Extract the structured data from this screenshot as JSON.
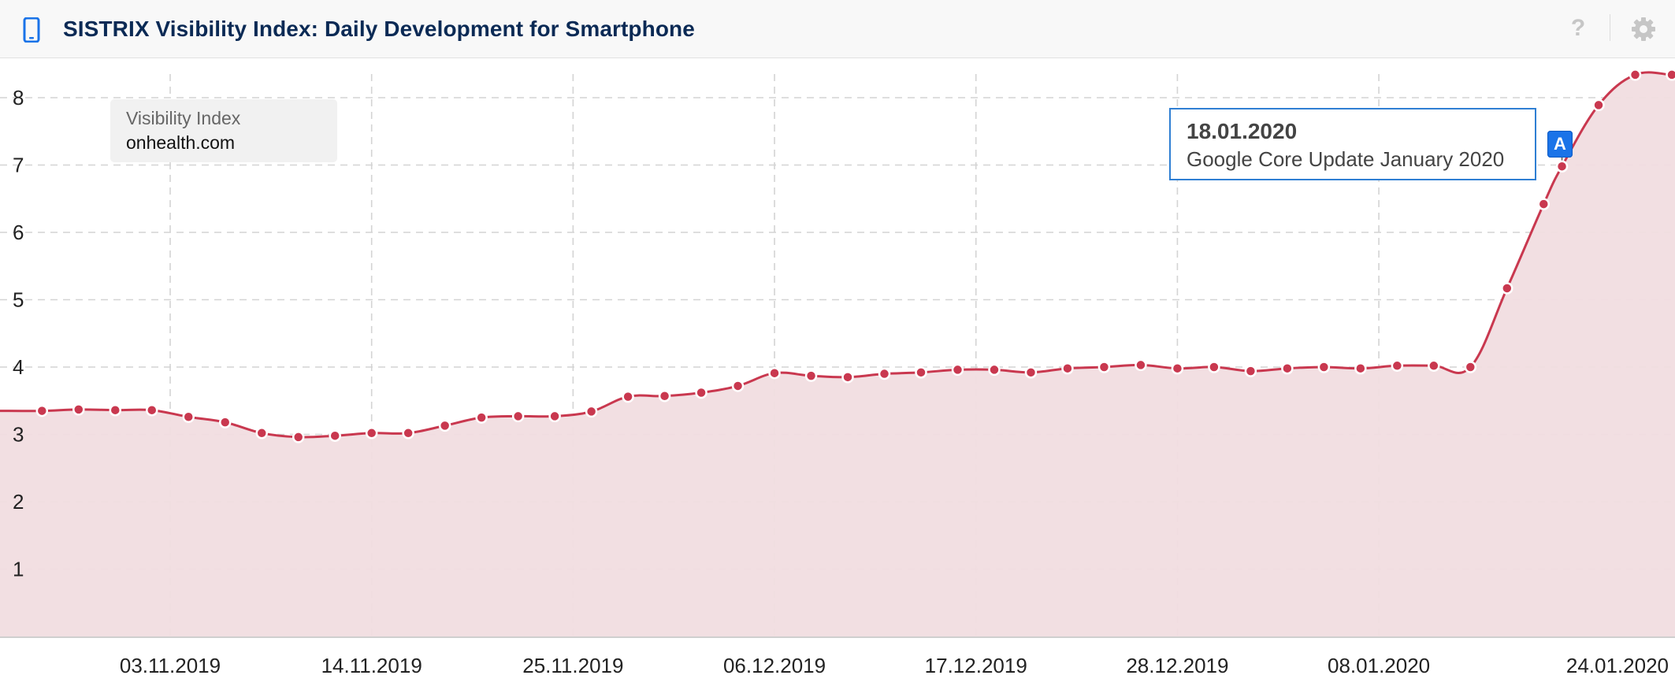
{
  "header": {
    "title": "SISTRIX Visibility Index: Daily Development for Smartphone",
    "icons": [
      "smartphone-icon",
      "help-icon",
      "gear-icon"
    ],
    "help_symbol": "?"
  },
  "legend": {
    "title": "Visibility Index",
    "domain": "onhealth.com"
  },
  "event": {
    "marker_label": "A",
    "date": "18.01.2020",
    "label": "Google Core Update January 2020"
  },
  "colors": {
    "line": "#c9384f",
    "fill": "#f1dde0",
    "grid": "#d4d4d4",
    "title": "#0b2a55",
    "marker": "#1a73e8",
    "callout_border": "#2f7fd3"
  },
  "chart_data": {
    "type": "area",
    "title": "SISTRIX Visibility Index: Daily Development for Smartphone",
    "xlabel": "",
    "ylabel": "",
    "ylim": [
      0,
      8.5
    ],
    "yticks": [
      1,
      2,
      3,
      4,
      5,
      6,
      7,
      8
    ],
    "xticks": [
      "03.11.2019",
      "14.11.2019",
      "25.11.2019",
      "06.12.2019",
      "17.12.2019",
      "28.12.2019",
      "08.01.2020",
      "24.01.2020"
    ],
    "grid": true,
    "legend_position": "top-left",
    "series": [
      {
        "name": "onhealth.com",
        "x": [
          "27.10.2019",
          "29.10.2019",
          "31.10.2019",
          "02.11.2019",
          "04.11.2019",
          "06.11.2019",
          "08.11.2019",
          "10.11.2019",
          "12.11.2019",
          "14.11.2019",
          "16.11.2019",
          "18.11.2019",
          "20.11.2019",
          "22.11.2019",
          "24.11.2019",
          "26.11.2019",
          "28.11.2019",
          "30.11.2019",
          "02.12.2019",
          "04.12.2019",
          "06.12.2019",
          "08.12.2019",
          "10.12.2019",
          "12.12.2019",
          "14.12.2019",
          "16.12.2019",
          "18.12.2019",
          "20.12.2019",
          "22.12.2019",
          "24.12.2019",
          "26.12.2019",
          "28.12.2019",
          "30.12.2019",
          "01.01.2020",
          "03.01.2020",
          "05.01.2020",
          "07.01.2020",
          "09.01.2020",
          "11.01.2020",
          "13.01.2020",
          "15.01.2020",
          "17.01.2020",
          "18.01.2020",
          "20.01.2020",
          "22.01.2020",
          "24.01.2020"
        ],
        "values": [
          3.35,
          3.37,
          3.36,
          3.36,
          3.26,
          3.18,
          3.02,
          2.96,
          2.98,
          3.02,
          3.02,
          3.13,
          3.25,
          3.27,
          3.27,
          3.34,
          3.56,
          3.57,
          3.62,
          3.72,
          3.91,
          3.87,
          3.85,
          3.9,
          3.92,
          3.96,
          3.96,
          3.92,
          3.98,
          4.0,
          4.03,
          3.98,
          4.0,
          3.94,
          3.98,
          4.0,
          3.98,
          4.02,
          4.02,
          4.0,
          5.17,
          6.42,
          6.98,
          7.89,
          8.34,
          8.34
        ]
      }
    ]
  }
}
